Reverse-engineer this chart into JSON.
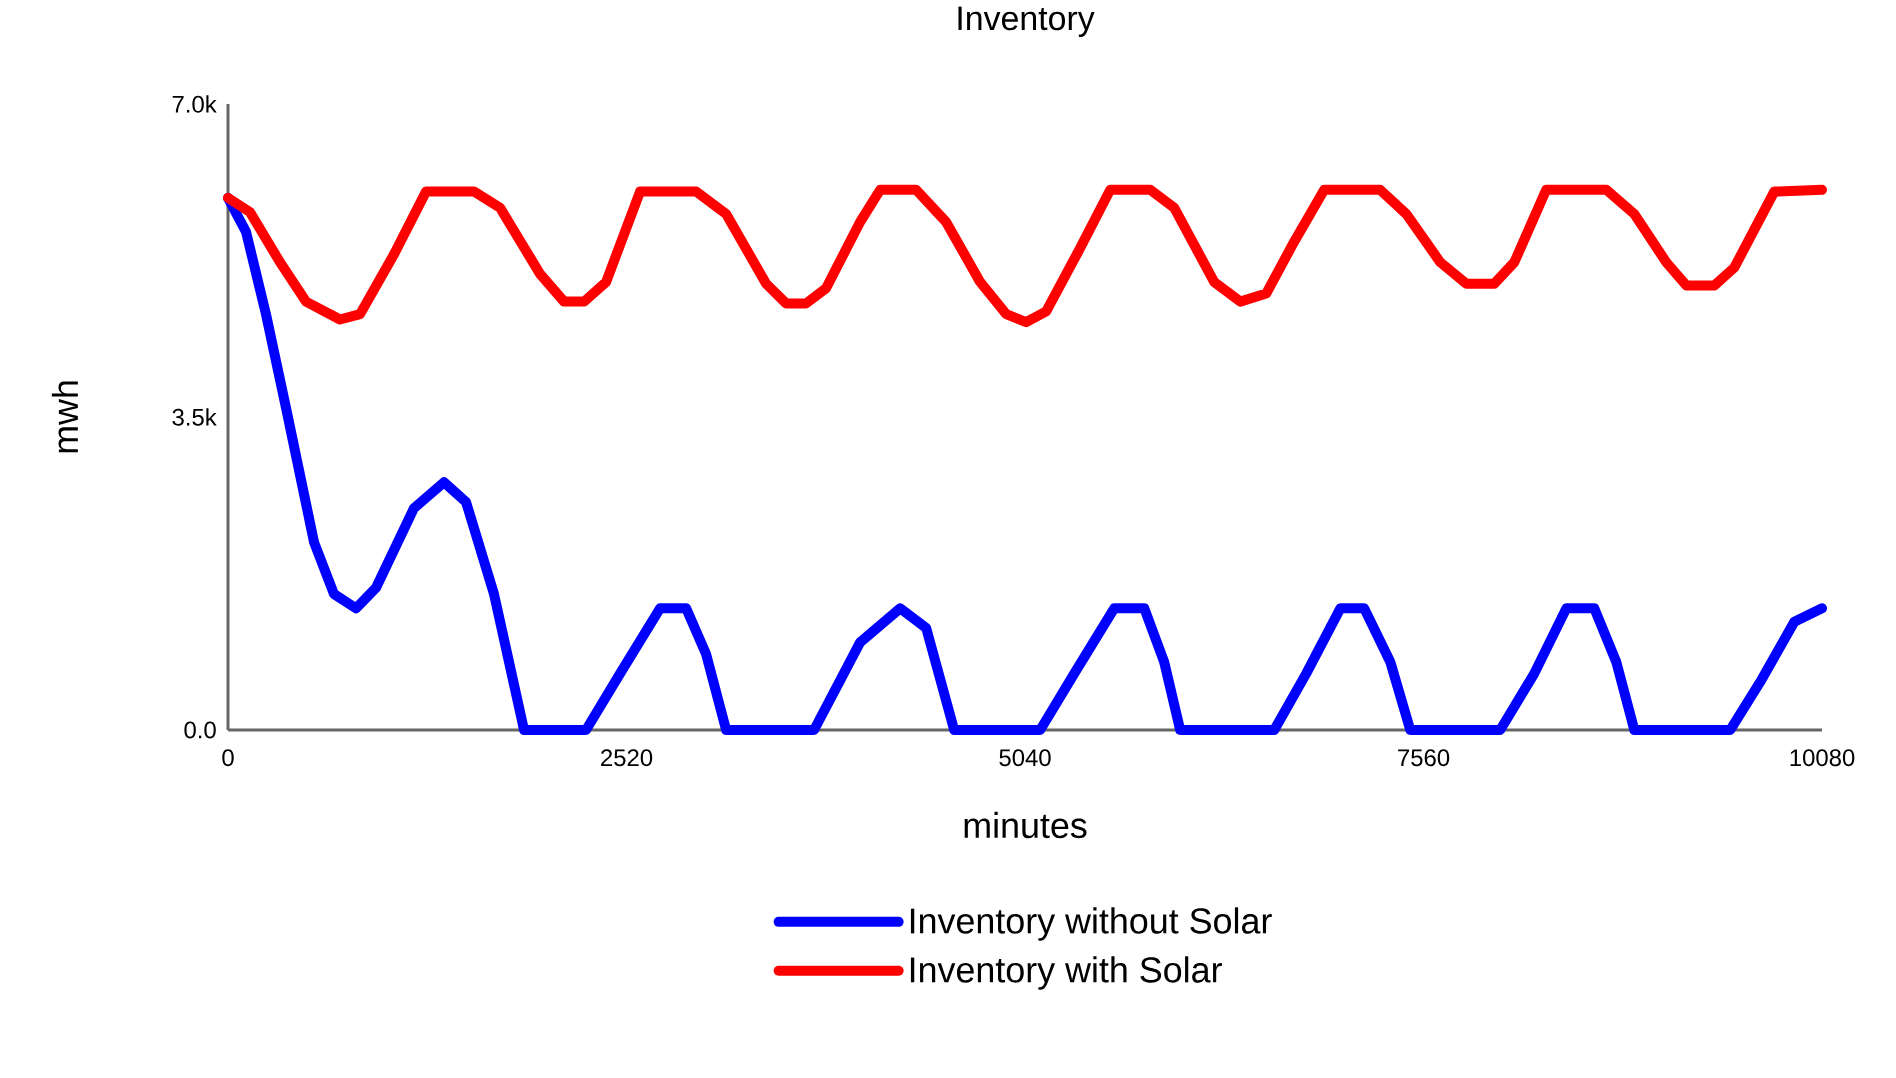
{
  "chart_data": {
    "type": "line",
    "title": "Inventory",
    "xlabel": "minutes",
    "ylabel": "mwh",
    "x": [
      0,
      114,
      240,
      367,
      544,
      670,
      810,
      936,
      1176,
      1366,
      1505,
      1682,
      1872,
      2264,
      2479,
      2732,
      2897,
      3023,
      3150,
      3706,
      3997,
      4250,
      4415,
      4592,
      5136,
      5351,
      5604,
      5794,
      5920,
      6021,
      6616,
      6818,
      7034,
      7185,
      7350,
      7476,
      8045,
      8260,
      8463,
      8640,
      8779,
      8893,
      9500,
      9690,
      9905,
      10080
    ],
    "series": [
      {
        "name": "Inventory without Solar",
        "color": "#0000ff",
        "values": [
          5950,
          5570,
          4650,
          3600,
          2100,
          1520,
          1360,
          1590,
          2480,
          2770,
          2550,
          1520,
          0,
          0,
          630,
          1360,
          1360,
          850,
          0,
          0,
          980,
          1360,
          1140,
          0,
          0,
          630,
          1360,
          1360,
          760,
          0,
          0,
          630,
          1360,
          1360,
          760,
          0,
          0,
          630,
          1360,
          1360,
          760,
          0,
          0,
          540,
          1210,
          1360
        ]
      },
      {
        "name": "Inventory with Solar",
        "color": "#ff0000",
        "x": [
          0,
          139,
          329,
          493,
          708,
          835,
          1050,
          1252,
          1556,
          1720,
          1973,
          2125,
          2252,
          2391,
          2606,
          2960,
          3150,
          3403,
          3529,
          3656,
          3782,
          3997,
          4124,
          4352,
          4541,
          4756,
          4921,
          5047,
          5174,
          5389,
          5579,
          5832,
          5983,
          6236,
          6401,
          6565,
          6742,
          6932,
          7286,
          7451,
          7666,
          7830,
          8007,
          8134,
          8336,
          8716,
          8893,
          9095,
          9222,
          9399,
          9525,
          9778,
          10080
        ],
        "values": [
          5950,
          5790,
          5230,
          4790,
          4590,
          4650,
          5320,
          6020,
          6020,
          5840,
          5100,
          4790,
          4790,
          5010,
          6020,
          6020,
          5770,
          4990,
          4770,
          4770,
          4940,
          5680,
          6040,
          6040,
          5680,
          5010,
          4650,
          4560,
          4680,
          5390,
          6040,
          6040,
          5840,
          5010,
          4790,
          4880,
          5460,
          6040,
          6040,
          5770,
          5230,
          4990,
          4990,
          5230,
          6040,
          6040,
          5770,
          5230,
          4970,
          4970,
          5170,
          6020,
          6040
        ]
      }
    ],
    "xlim": [
      0,
      10080
    ],
    "xticks": [
      0,
      2520,
      5040,
      7560,
      10080
    ],
    "ylim": [
      0,
      7000
    ],
    "yticks": [
      {
        "value": 0,
        "label": "0.0"
      },
      {
        "value": 3500,
        "label": "3.5k"
      },
      {
        "value": 7000,
        "label": "7.0k"
      }
    ],
    "grid": false,
    "legend": "bottom"
  }
}
